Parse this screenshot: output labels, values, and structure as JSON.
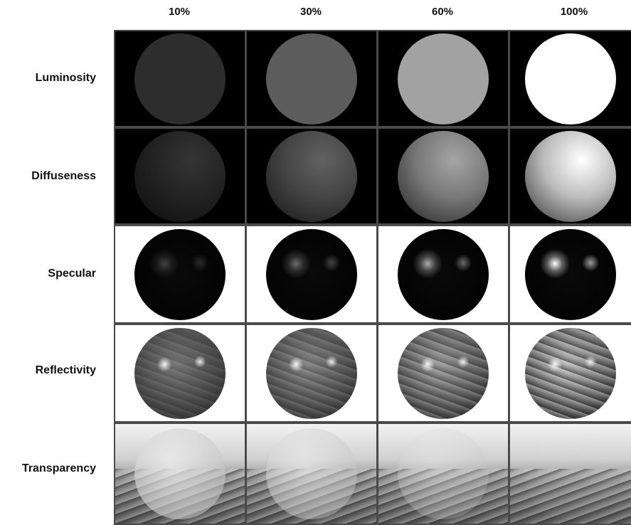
{
  "columns": [
    "10%",
    "30%",
    "60%",
    "100%"
  ],
  "rows": [
    {
      "label": "Luminosity",
      "cell_background": "#000000"
    },
    {
      "label": "Diffuseness",
      "cell_background": "#000000"
    },
    {
      "label": "Specular",
      "cell_background": "#ffffff"
    },
    {
      "label": "Reflectivity",
      "cell_background": "#ffffff"
    },
    {
      "label": "Transparency",
      "cell_background": "#dcdcdc"
    }
  ],
  "levels": [
    0.1,
    0.3,
    0.6,
    1.0
  ],
  "colors": {
    "grid_border": "#4a4a4a",
    "text": "#111111"
  }
}
